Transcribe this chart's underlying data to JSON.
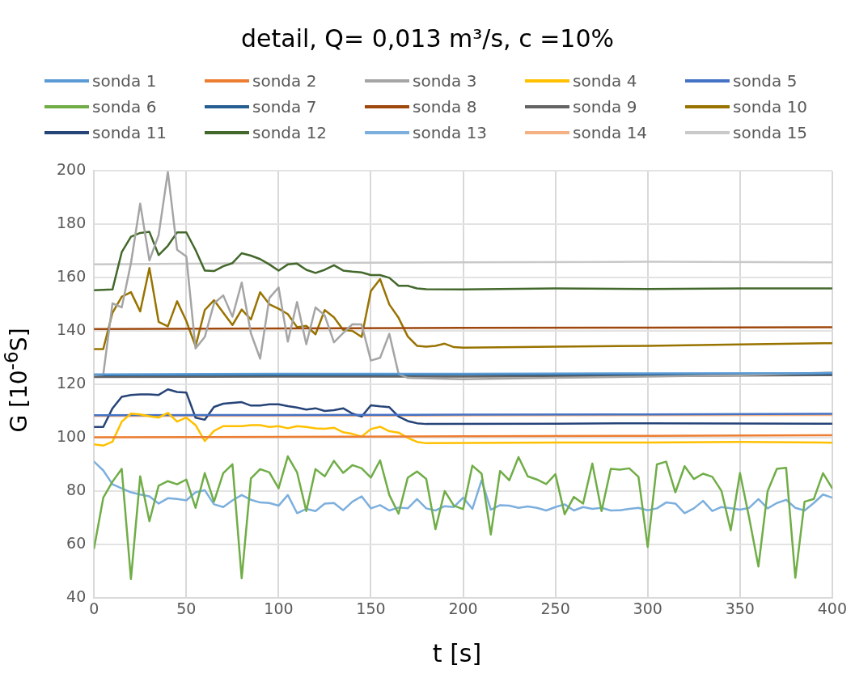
{
  "chart_data": {
    "type": "line",
    "title": "detail, Q= 0,013 m³/s, c =10%",
    "xlabel": "t [s]",
    "ylabel": "G [10$^{-6}$S]",
    "xlim": [
      0,
      400
    ],
    "xticks": [
      0,
      50,
      100,
      150,
      200,
      250,
      300,
      350,
      400
    ],
    "ylim": [
      40,
      200
    ],
    "yticks": [
      40,
      60,
      80,
      100,
      120,
      140,
      160,
      180,
      200
    ],
    "grid": true,
    "legend": "top",
    "marker": "none",
    "x": [
      0,
      5,
      10,
      15,
      20,
      25,
      30,
      35,
      40,
      45,
      50,
      55,
      60,
      65,
      70,
      75,
      80,
      85,
      90,
      95,
      100,
      105,
      110,
      115,
      120,
      125,
      130,
      135,
      140,
      145,
      150,
      155,
      160,
      165,
      170,
      175,
      180,
      185,
      190,
      195,
      200,
      205,
      210,
      215,
      220,
      225,
      230,
      235,
      240,
      245,
      250,
      255,
      260,
      265,
      270,
      275,
      280,
      285,
      290,
      295,
      300,
      305,
      310,
      315,
      320,
      325,
      330,
      335,
      340,
      345,
      350,
      355,
      360,
      365,
      370,
      375,
      380,
      385,
      390,
      395,
      400
    ],
    "series": [
      {
        "name": "sonda 1",
        "color": "#5b9bd5",
        "x": [
          0,
          100,
          200,
          300,
          400
        ],
        "values": [
          123.8,
          124,
          124,
          124.2,
          124.3
        ]
      },
      {
        "name": "sonda 2",
        "color": "#ed7d31",
        "x": [
          0,
          100,
          200,
          300,
          400
        ],
        "values": [
          100.2,
          100.4,
          100.6,
          100.8,
          101
        ]
      },
      {
        "name": "sonda 3",
        "color": "#a5a5a5",
        "x": [
          0,
          5,
          10,
          15,
          20,
          25,
          30,
          35,
          40,
          45,
          50,
          55,
          60,
          65,
          70,
          75,
          80,
          85,
          90,
          95,
          100,
          105,
          110,
          115,
          120,
          125,
          130,
          135,
          140,
          145,
          150,
          155,
          160,
          165,
          170,
          200,
          250,
          300,
          350,
          400
        ],
        "values": [
          123.5,
          123.7,
          150.4,
          148.9,
          165.5,
          187.8,
          166.5,
          176,
          199.7,
          170.5,
          168,
          133.5,
          137.8,
          150.4,
          153.4,
          145.4,
          158.2,
          139.2,
          129.7,
          152.4,
          156.4,
          136.1,
          150.9,
          135.1,
          148.9,
          145.9,
          135.8,
          139.3,
          142.6,
          142.5,
          129,
          130,
          139,
          124,
          122.5,
          122,
          122.5,
          123,
          123.5,
          124.5
        ]
      },
      {
        "name": "sonda 4",
        "color": "#ffc000",
        "x": [
          0,
          5,
          10,
          15,
          20,
          25,
          30,
          35,
          40,
          45,
          50,
          55,
          60,
          65,
          70,
          75,
          80,
          85,
          90,
          95,
          100,
          105,
          110,
          115,
          120,
          125,
          130,
          135,
          140,
          145,
          150,
          155,
          160,
          165,
          170,
          175,
          180,
          250,
          300,
          350,
          400
        ],
        "values": [
          97.6,
          97.1,
          98.6,
          106.1,
          109.1,
          108.8,
          108.1,
          107.6,
          109.4,
          106.1,
          107.6,
          104.8,
          98.8,
          102.6,
          104.4,
          104.4,
          104.4,
          104.8,
          104.8,
          104.1,
          104.4,
          103.6,
          104.4,
          104.1,
          103.6,
          103.4,
          103.8,
          102.1,
          101.5,
          100.5,
          103.3,
          104.2,
          102.5,
          102,
          100,
          98.5,
          98,
          98.3,
          98.3,
          98.5,
          98.2
        ]
      },
      {
        "name": "sonda 5",
        "color": "#4472c4",
        "x": [
          0,
          100,
          200,
          300,
          400
        ],
        "values": [
          108.5,
          108.6,
          108.7,
          108.8,
          109
        ]
      },
      {
        "name": "sonda 6",
        "color": "#70ad47",
        "values": [
          58.6,
          77.6,
          83.6,
          88.4,
          47.1,
          85.6,
          68.8,
          82.1,
          83.8,
          82.6,
          84.4,
          73.8,
          86.8,
          76.1,
          86.8,
          90.1,
          47.4,
          84.8,
          88.3,
          87.1,
          81.1,
          93.1,
          87.1,
          72.6,
          88.3,
          85.6,
          91.4,
          86.9,
          89.8,
          88.6,
          85.1,
          91.6,
          78.6,
          71.6,
          85.1,
          87.4,
          84.6,
          65.8,
          80.1,
          74.6,
          73.3,
          89.6,
          86.6,
          63.8,
          87.6,
          84.1,
          92.8,
          85.6,
          84.4,
          82.7,
          86.4,
          71.4,
          77.9,
          75.4,
          90.4,
          72.6,
          88.4,
          88.1,
          88.6,
          85.4,
          59.1,
          90.1,
          91.1,
          79.6,
          89.4,
          84.6,
          86.6,
          85.4,
          80.1,
          65.4,
          86.8,
          70,
          51.8,
          80.1,
          88.4,
          88.8,
          47.6,
          76.1,
          77.1,
          86.8,
          81.1
        ]
      },
      {
        "name": "sonda 7",
        "color": "#255e91",
        "x": [
          0,
          100,
          200,
          300,
          400
        ],
        "values": [
          123.5,
          123.6,
          123.7,
          123.8,
          124
        ]
      },
      {
        "name": "sonda 8",
        "color": "#9e480e",
        "x": [
          0,
          100,
          200,
          300,
          400
        ],
        "values": [
          140.8,
          141,
          141.2,
          141.3,
          141.5
        ]
      },
      {
        "name": "sonda 9",
        "color": "#636363",
        "x": [
          0,
          100,
          200,
          300,
          400
        ],
        "values": [
          122.8,
          123,
          123,
          123.2,
          123.5
        ]
      },
      {
        "name": "sonda 10",
        "color": "#997300",
        "x": [
          0,
          5,
          10,
          15,
          20,
          25,
          30,
          35,
          40,
          45,
          50,
          55,
          60,
          65,
          70,
          75,
          80,
          85,
          90,
          95,
          100,
          105,
          110,
          115,
          120,
          125,
          130,
          135,
          140,
          145,
          150,
          155,
          160,
          165,
          170,
          175,
          180,
          185,
          190,
          195,
          200,
          250,
          300,
          350,
          400
        ],
        "values": [
          133.3,
          133.3,
          146.9,
          152.9,
          154.6,
          147.4,
          163.7,
          143.5,
          141.8,
          151.2,
          143.8,
          134.3,
          147.9,
          151.6,
          146.9,
          142.3,
          148.1,
          144.4,
          154.6,
          150.1,
          148.4,
          146.4,
          141.5,
          142,
          138.8,
          147.9,
          145.2,
          140.5,
          140.1,
          137.8,
          155,
          159.5,
          150,
          145,
          138,
          134.5,
          134.2,
          134.5,
          135.3,
          134,
          133.8,
          134.2,
          134.5,
          135,
          135.5
        ]
      },
      {
        "name": "sonda 11",
        "color": "#264478",
        "x": [
          0,
          5,
          10,
          15,
          20,
          25,
          30,
          35,
          40,
          45,
          50,
          55,
          60,
          65,
          70,
          75,
          80,
          85,
          90,
          95,
          100,
          105,
          110,
          115,
          120,
          125,
          130,
          135,
          140,
          145,
          150,
          155,
          160,
          165,
          170,
          175,
          180,
          250,
          300,
          350,
          400
        ],
        "values": [
          104.1,
          104.1,
          111.1,
          115.4,
          116.1,
          116.3,
          116.3,
          116.1,
          118.2,
          117.2,
          117,
          107.6,
          106.8,
          111.6,
          112.8,
          113.1,
          113.4,
          112.1,
          112.1,
          112.6,
          112.6,
          111.9,
          111.4,
          110.6,
          111.1,
          110.1,
          110.4,
          111.1,
          109.1,
          108,
          112.2,
          111.8,
          111.5,
          108,
          106.3,
          105.5,
          105.2,
          105.3,
          105.5,
          105.4,
          105.3
        ]
      },
      {
        "name": "sonda 12",
        "color": "#43682b",
        "x": [
          0,
          5,
          10,
          15,
          20,
          25,
          30,
          35,
          40,
          45,
          50,
          55,
          60,
          65,
          70,
          75,
          80,
          85,
          90,
          95,
          100,
          105,
          110,
          115,
          120,
          125,
          130,
          135,
          140,
          145,
          150,
          155,
          160,
          165,
          170,
          175,
          180,
          200,
          250,
          300,
          350,
          400
        ],
        "values": [
          155.3,
          155.5,
          155.6,
          169.6,
          175.4,
          176.8,
          177.2,
          168.5,
          172,
          177,
          177,
          170.4,
          162.7,
          162.5,
          164.3,
          165.5,
          169.2,
          168.3,
          167,
          165,
          162.7,
          165,
          165.3,
          163,
          161.8,
          163,
          164.7,
          162.7,
          162.3,
          162,
          161,
          161,
          160,
          157,
          157,
          156,
          155.7,
          155.6,
          156,
          155.8,
          156,
          156
        ]
      },
      {
        "name": "sonda 13",
        "color": "#7cafdd",
        "values": [
          91.1,
          87.8,
          82.6,
          81.1,
          79.6,
          78.8,
          78.1,
          75.4,
          77.4,
          77.1,
          76.6,
          79.6,
          80.4,
          75.1,
          74.1,
          76.6,
          78.6,
          76.8,
          75.8,
          75.6,
          74.6,
          78.6,
          71.8,
          73.4,
          72.6,
          75.4,
          75.6,
          72.9,
          76.1,
          78.1,
          73.6,
          74.8,
          72.8,
          73.9,
          73.6,
          77.1,
          73.6,
          72.8,
          74.4,
          74.1,
          77.6,
          73.4,
          84.1,
          73.1,
          74.8,
          74.6,
          73.8,
          74.3,
          73.8,
          72.8,
          74.1,
          75.1,
          72.8,
          74.1,
          73.4,
          73.8,
          72.8,
          72.9,
          73.4,
          73.8,
          72.9,
          73.6,
          75.8,
          75.4,
          71.8,
          73.6,
          76.4,
          72.6,
          74.1,
          73.6,
          73.1,
          73.8,
          77.1,
          73.6,
          75.6,
          76.8,
          73.8,
          72.8,
          75.6,
          78.8,
          77.6
        ]
      },
      {
        "name": "sonda 14",
        "color": "#f4b183",
        "x": [
          0,
          100,
          200,
          300,
          400
        ],
        "values": [
          108.2,
          108.3,
          108.4,
          108.5,
          108.6
        ]
      },
      {
        "name": "sonda 15",
        "color": "#c9c9c9",
        "x": [
          0,
          100,
          200,
          300,
          400
        ],
        "values": [
          165,
          165.5,
          165.8,
          166,
          165.8
        ]
      }
    ]
  }
}
